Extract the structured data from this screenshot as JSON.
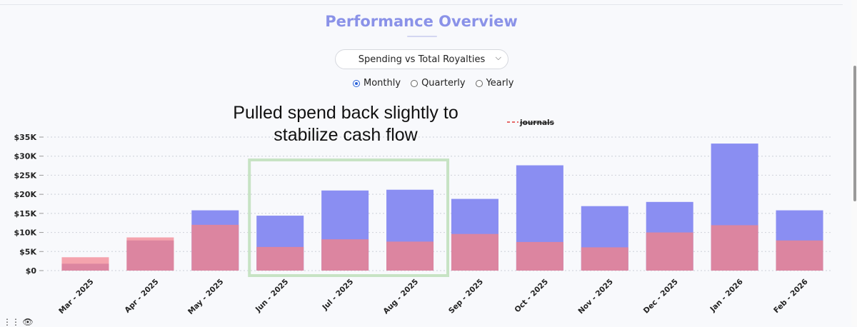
{
  "title": "Performance Overview",
  "dropdown": {
    "selected": "Spending vs Total Royalties"
  },
  "period_options": [
    {
      "label": "Monthly",
      "checked": true
    },
    {
      "label": "Quarterly",
      "checked": false
    },
    {
      "label": "Yearly",
      "checked": false
    }
  ],
  "annotation": "Pulled spend back slightly to stabilize cash flow",
  "legend_label": "journals",
  "colors": {
    "title": "#8a92e8",
    "total": "#8a8ef2",
    "spend": "#dc85a0",
    "spend_light": "#f4a3ad",
    "highlight": "#c7e3c4",
    "legend_dash": "#e03a3a"
  },
  "chart_data": {
    "type": "bar",
    "stacked_overlay": true,
    "categories": [
      "Mar - 2025",
      "Apr - 2025",
      "May - 2025",
      "Jun - 2025",
      "Jul - 2025",
      "Aug - 2025",
      "Sep - 2025",
      "Oct - 2025",
      "Nov - 2025",
      "Dec - 2025",
      "Jan - 2026",
      "Feb - 2026"
    ],
    "series": [
      {
        "values": [
          3500,
          8700,
          15800,
          14400,
          21000,
          21200,
          18800,
          27600,
          16900,
          18000,
          33300,
          15800
        ]
      },
      {
        "values": [
          1800,
          7900,
          12000,
          6200,
          8200,
          7600,
          9600,
          7500,
          6100,
          10000,
          11900,
          7900
        ]
      }
    ],
    "yticks": [
      "$0",
      "$5K",
      "$10K",
      "$15K",
      "$20K",
      "$25K",
      "$30K",
      "$35K"
    ],
    "ylim": [
      0,
      35000
    ],
    "grid": true,
    "highlight": {
      "from": "Jun - 2025",
      "to": "Aug - 2025"
    }
  }
}
